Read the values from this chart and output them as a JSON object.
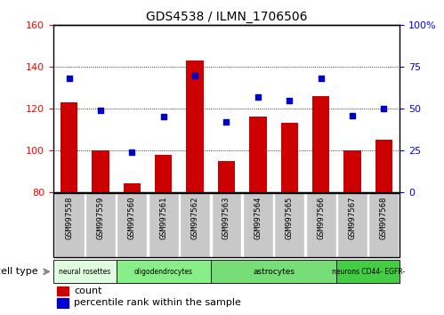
{
  "title": "GDS4538 / ILMN_1706506",
  "samples": [
    "GSM997558",
    "GSM997559",
    "GSM997560",
    "GSM997561",
    "GSM997562",
    "GSM997563",
    "GSM997564",
    "GSM997565",
    "GSM997566",
    "GSM997567",
    "GSM997568"
  ],
  "bar_values": [
    123,
    100,
    84,
    98,
    143,
    95,
    116,
    113,
    126,
    100,
    105
  ],
  "dot_values": [
    68,
    49,
    24,
    45,
    70,
    42,
    57,
    55,
    68,
    46,
    50
  ],
  "ylim_left": [
    80,
    160
  ],
  "ylim_right": [
    0,
    100
  ],
  "yticks_left": [
    80,
    100,
    120,
    140,
    160
  ],
  "yticks_right": [
    0,
    25,
    50,
    75,
    100
  ],
  "ytick_labels_right": [
    "0",
    "25",
    "50",
    "75",
    "100%"
  ],
  "bar_color": "#CC0000",
  "dot_color": "#0000CC",
  "cell_type_colors": [
    "#DDFFDD",
    "#88DD88",
    "#66CC66",
    "#33BB33"
  ],
  "tick_bg_color": "#C8C8C8",
  "legend_count_color": "#CC0000",
  "legend_dot_color": "#0000CC",
  "ct_boundaries": [
    [
      0,
      2,
      "#DDFFDD",
      "neural rosettes"
    ],
    [
      2,
      5,
      "#88EE88",
      "oligodendrocytes"
    ],
    [
      5,
      9,
      "#77DD77",
      "astrocytes"
    ],
    [
      9,
      11,
      "#44CC44",
      "neurons CD44- EGFR-"
    ]
  ]
}
